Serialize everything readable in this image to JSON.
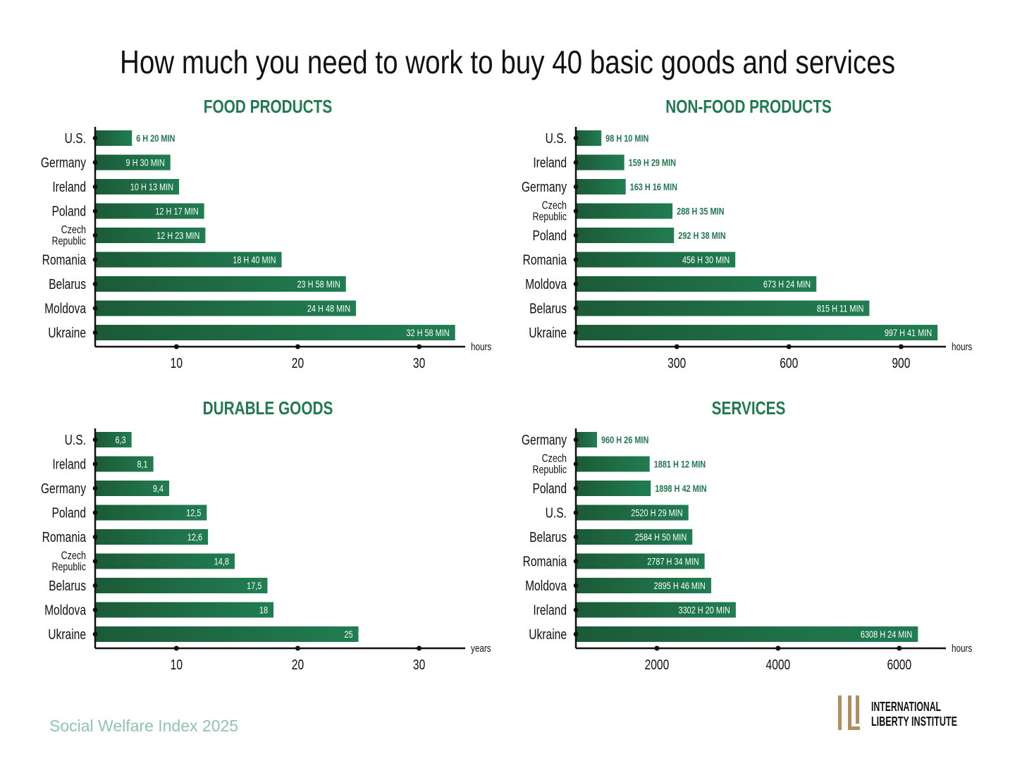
{
  "title": "How much you need to work to buy 40 basic goods and services",
  "footer": "Social Welfare Index 2025",
  "logo": {
    "line1": "INTERNATIONAL",
    "line2": "LIBERTY INSTITUTE"
  },
  "colors": {
    "title": "#1f7a4f",
    "bar_dark": "#1c5a37",
    "bar_light": "#217d52",
    "footer": "#8fc5aa",
    "logo_gold": "#b38e5d",
    "text": "#111111"
  },
  "chart_data": [
    {
      "type": "bar",
      "title": "FOOD PRODUCTS",
      "unit_label": "hours",
      "categories": [
        "U.S.",
        "Germany",
        "Ireland",
        "Poland",
        "Czech Republic",
        "Romania",
        "Belarus",
        "Moldova",
        "Ukraine"
      ],
      "values": [
        6.333,
        9.5,
        10.217,
        12.283,
        12.383,
        18.667,
        23.967,
        24.8,
        32.967
      ],
      "labels": [
        "6 H 20 MIN",
        "9 H 30 MIN",
        "10 H 13 MIN",
        "12 H 17 MIN",
        "12 H 23 MIN",
        "18 H 40 MIN",
        "23 H 58 MIN",
        "24 H 48 MIN",
        "32 H 58 MIN"
      ],
      "label_position": [
        "outside",
        "inside",
        "inside",
        "inside",
        "inside",
        "inside",
        "inside",
        "inside",
        "inside"
      ],
      "ticks": [
        10,
        20,
        30
      ],
      "tick_labels": [
        "10",
        "20",
        "30"
      ],
      "xlim": [
        3.3,
        33.8
      ]
    },
    {
      "type": "bar",
      "title": "NON-FOOD PRODUCTS",
      "unit_label": "hours",
      "categories": [
        "U.S.",
        "Ireland",
        "Germany",
        "Czech Republic",
        "Poland",
        "Romania",
        "Moldova",
        "Belarus",
        "Ukraine"
      ],
      "values": [
        98.167,
        159.483,
        163.267,
        288.583,
        292.633,
        456.5,
        673.4,
        815.183,
        997.683
      ],
      "labels": [
        "98 H 10 MIN",
        "159 H 29 MIN",
        "163 H 16 MIN",
        "288 H 35 MIN",
        "292 H 38 MIN",
        "456 H 30 MIN",
        "673 H 24 MIN",
        "815 H 11 MIN",
        "997 H 41 MIN"
      ],
      "label_position": [
        "outside",
        "outside",
        "outside",
        "outside",
        "outside",
        "inside",
        "inside",
        "inside",
        "inside"
      ],
      "ticks": [
        300,
        600,
        900
      ],
      "tick_labels": [
        "300",
        "600",
        "900"
      ],
      "xlim": [
        30,
        1020
      ]
    },
    {
      "type": "bar",
      "title": "DURABLE GOODS",
      "unit_label": "years",
      "categories": [
        "U.S.",
        "Ireland",
        "Germany",
        "Poland",
        "Romania",
        "Czech Republic",
        "Belarus",
        "Moldova",
        "Ukraine"
      ],
      "values": [
        6.3,
        8.1,
        9.4,
        12.5,
        12.6,
        14.8,
        17.5,
        18,
        25
      ],
      "labels": [
        "6,3",
        "8,1",
        "9,4",
        "12,5",
        "12,6",
        "14,8",
        "17,5",
        "18",
        "25"
      ],
      "label_position": [
        "inside",
        "inside",
        "inside",
        "inside",
        "inside",
        "inside",
        "inside",
        "inside",
        "inside"
      ],
      "ticks": [
        10,
        20,
        30
      ],
      "tick_labels": [
        "10",
        "20",
        "30"
      ],
      "xlim": [
        3.3,
        33.8
      ]
    },
    {
      "type": "bar",
      "title": "SERVICES",
      "unit_label": "hours",
      "categories": [
        "Germany",
        "Czech Republic",
        "Poland",
        "U.S.",
        "Belarus",
        "Romania",
        "Moldova",
        "Ireland",
        "Ukraine"
      ],
      "values": [
        960.433,
        1881.2,
        1898.7,
        2520.483,
        2584.833,
        2787.567,
        2895.767,
        3302.333,
        6308.4
      ],
      "labels": [
        "960 H 26 MIN",
        "1881 H 12 MIN",
        "1898 H 42 MIN",
        "2520 H 29 MIN",
        "2584 H 50 MIN",
        "2787 H 34 MIN",
        "2895 H 46 MIN",
        "3302 H 20 MIN",
        "6308 H 24 MIN"
      ],
      "label_position": [
        "outside",
        "outside",
        "outside",
        "inside",
        "inside",
        "inside",
        "inside",
        "inside",
        "inside"
      ],
      "ticks": [
        2000,
        4000,
        6000
      ],
      "tick_labels": [
        "2000",
        "4000",
        "6000"
      ],
      "xlim": [
        663,
        6770
      ]
    }
  ]
}
